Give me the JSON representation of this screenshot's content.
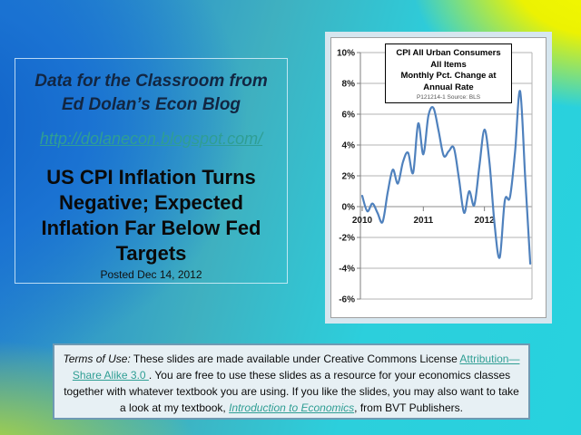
{
  "slide": {
    "header_box": {
      "title_lines": [
        "Data for the Classroom from",
        "Ed Dolan’s Econ Blog"
      ],
      "blog_link": "http://dolanecon.blogspot.com/",
      "headline_lines": [
        "US CPI Inflation Turns",
        "Negative; Expected",
        "Inflation Far Below Fed",
        "Targets"
      ],
      "posted": "Posted  Dec 14, 2012"
    },
    "terms_box": {
      "segments": [
        {
          "text": "Terms of Use:",
          "style": "italic"
        },
        {
          "text": " These slides are made available under Creative Commons License  ",
          "style": "plain"
        },
        {
          "text": "Attribution—Share Alike 3.0 ",
          "style": "link"
        },
        {
          "text": ". You are free to use these slides as a resource for your economics classes together with whatever textbook you are using. If you like the slides, you may also want to take a look at my textbook, ",
          "style": "plain"
        },
        {
          "text": "Introduction to Economics",
          "style": "link_italic"
        },
        {
          "text": ", from BVT Publishers.",
          "style": "plain"
        }
      ]
    },
    "colors": {
      "title_navy": "#122642",
      "link_teal": "#2f9e94",
      "chart_line_blue": "#4f81bd",
      "chart_frame_blue": "#d6e6ef"
    }
  },
  "chart_data": {
    "type": "line",
    "title_lines": [
      "CPI All Urban Consumers",
      "All Items",
      "Monthly Pct. Change at",
      "Annual Rate"
    ],
    "source_note": "P121214-1 Source: BLS",
    "x_months": [
      "2010-01",
      "2010-02",
      "2010-03",
      "2010-04",
      "2010-05",
      "2010-06",
      "2010-07",
      "2010-08",
      "2010-09",
      "2010-10",
      "2010-11",
      "2010-12",
      "2011-01",
      "2011-02",
      "2011-03",
      "2011-04",
      "2011-05",
      "2011-06",
      "2011-07",
      "2011-08",
      "2011-09",
      "2011-10",
      "2011-11",
      "2011-12",
      "2012-01",
      "2012-02",
      "2012-03",
      "2012-04",
      "2012-05",
      "2012-06",
      "2012-07",
      "2012-08",
      "2012-09",
      "2012-10"
    ],
    "values": [
      0.7,
      -0.3,
      0.2,
      -0.4,
      -1.0,
      0.9,
      2.4,
      1.5,
      2.9,
      3.5,
      2.2,
      5.4,
      3.4,
      5.9,
      6.4,
      4.9,
      3.3,
      3.6,
      3.8,
      1.8,
      -0.4,
      1.0,
      0.1,
      2.6,
      5.0,
      2.8,
      -1.2,
      -3.3,
      0.4,
      0.6,
      3.5,
      7.5,
      1.9,
      -3.7
    ],
    "y_ticks": [
      10,
      8,
      6,
      4,
      2,
      0,
      -2,
      -4,
      -6
    ],
    "y_tick_labels": [
      "10%",
      "8%",
      "6%",
      "4%",
      "2%",
      "0%",
      "-2%",
      "-4%",
      "-6%"
    ],
    "x_tick_labels": [
      "2010",
      "2011",
      "2012"
    ],
    "x_tick_month_indices": [
      0,
      12,
      24
    ],
    "ylim": [
      -6,
      10
    ],
    "grid": true,
    "legend": "none",
    "line_color": "#4f81bd"
  }
}
